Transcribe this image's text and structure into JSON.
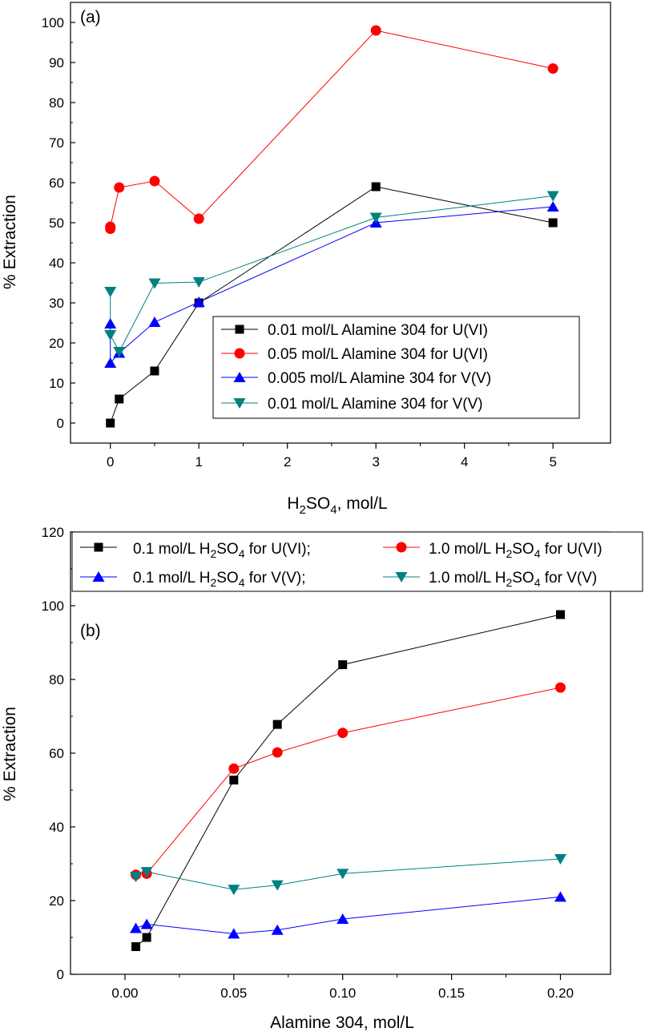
{
  "chart_data": [
    {
      "type": "line",
      "panel_label": "(a)",
      "xlabel_main": "H",
      "xlabel_sub1": "2",
      "xlabel_mid": "SO",
      "xlabel_sub2": "4",
      "xlabel_tail": ", mol/L",
      "ylabel": "% Extraction",
      "xlim": [
        -0.45,
        5.65
      ],
      "ylim": [
        -5,
        105
      ],
      "xticks": [
        0,
        1,
        2,
        3,
        4,
        5
      ],
      "yticks": [
        0,
        10,
        20,
        30,
        40,
        50,
        60,
        70,
        80,
        90,
        100
      ],
      "legend_position": "center-right",
      "series": [
        {
          "name": "0.01 mol/L Alamine 304 for U(VI)",
          "color": "#000000",
          "marker": "square",
          "x": [
            0,
            0.1,
            0.5,
            1,
            3,
            5
          ],
          "y": [
            0,
            6,
            13,
            30,
            59,
            50
          ]
        },
        {
          "name": "0.05 mol/L Alamine 304 for U(VI)",
          "color": "#ff0000",
          "marker": "circle",
          "x": [
            0,
            0,
            0.1,
            0.5,
            1,
            3,
            5
          ],
          "y": [
            48.5,
            49,
            58.8,
            60.4,
            51,
            98,
            88.5
          ]
        },
        {
          "name": "0.005 mol/L Alamine 304 for V(V)",
          "color": "#0000ff",
          "marker": "triangle-up",
          "x": [
            0,
            0,
            0.1,
            0.5,
            1,
            3,
            5
          ],
          "y": [
            24.8,
            15,
            17.5,
            25.2,
            30.2,
            50,
            54
          ]
        },
        {
          "name": "0.01 mol/L Alamine 304 for V(V)",
          "color": "#008080",
          "marker": "triangle-down",
          "x": [
            0,
            0,
            0.1,
            0.5,
            1,
            3,
            5
          ],
          "y": [
            32.8,
            22,
            17.8,
            34.9,
            35.2,
            51.3,
            56.7
          ]
        }
      ]
    },
    {
      "type": "line",
      "panel_label": "(b)",
      "xlabel": "Alamine 304, mol/L",
      "ylabel": "% Extraction",
      "xlim": [
        -0.025,
        0.223
      ],
      "ylim": [
        0,
        120
      ],
      "xticks": [
        "0.00",
        "0.05",
        "0.10",
        "0.15",
        "0.20"
      ],
      "yticks": [
        0,
        20,
        40,
        60,
        80,
        100,
        120
      ],
      "legend_position": "top",
      "series": [
        {
          "name_pre": "0.1 mol/L H",
          "name_mid": "SO",
          "name_post": " for U(VI);",
          "sub1": "2",
          "sub2": "4",
          "color": "#000000",
          "marker": "square",
          "x": [
            0.005,
            0.01,
            0.05,
            0.07,
            0.1,
            0.2
          ],
          "y": [
            7.5,
            10,
            52.7,
            67.8,
            84,
            97.6
          ]
        },
        {
          "name_pre": "1.0 mol/L H",
          "name_mid": "SO",
          "name_post": " for U(VI)",
          "sub1": "2",
          "sub2": "4",
          "color": "#ff0000",
          "marker": "circle",
          "x": [
            0.005,
            0.01,
            0.05,
            0.07,
            0.1,
            0.2
          ],
          "y": [
            27,
            27.3,
            55.8,
            60.2,
            65.5,
            77.8
          ]
        },
        {
          "name_pre": "0.1 mol/L H",
          "name_mid": "SO",
          "name_post": " for V(V);",
          "sub1": "2",
          "sub2": "4",
          "color": "#0000ff",
          "marker": "triangle-up",
          "x": [
            0.005,
            0.01,
            0.05,
            0.07,
            0.1,
            0.2
          ],
          "y": [
            12.5,
            13.6,
            11,
            12,
            15,
            21
          ]
        },
        {
          "name_pre": "1.0 mol/L H",
          "name_mid": "SO",
          "name_post": " for V(V)",
          "sub1": "2",
          "sub2": "4",
          "color": "#008080",
          "marker": "triangle-down",
          "x": [
            0.005,
            0.01,
            0.05,
            0.07,
            0.1,
            0.2
          ],
          "y": [
            26.5,
            27.8,
            23,
            24.2,
            27.3,
            31.3
          ]
        }
      ]
    }
  ]
}
